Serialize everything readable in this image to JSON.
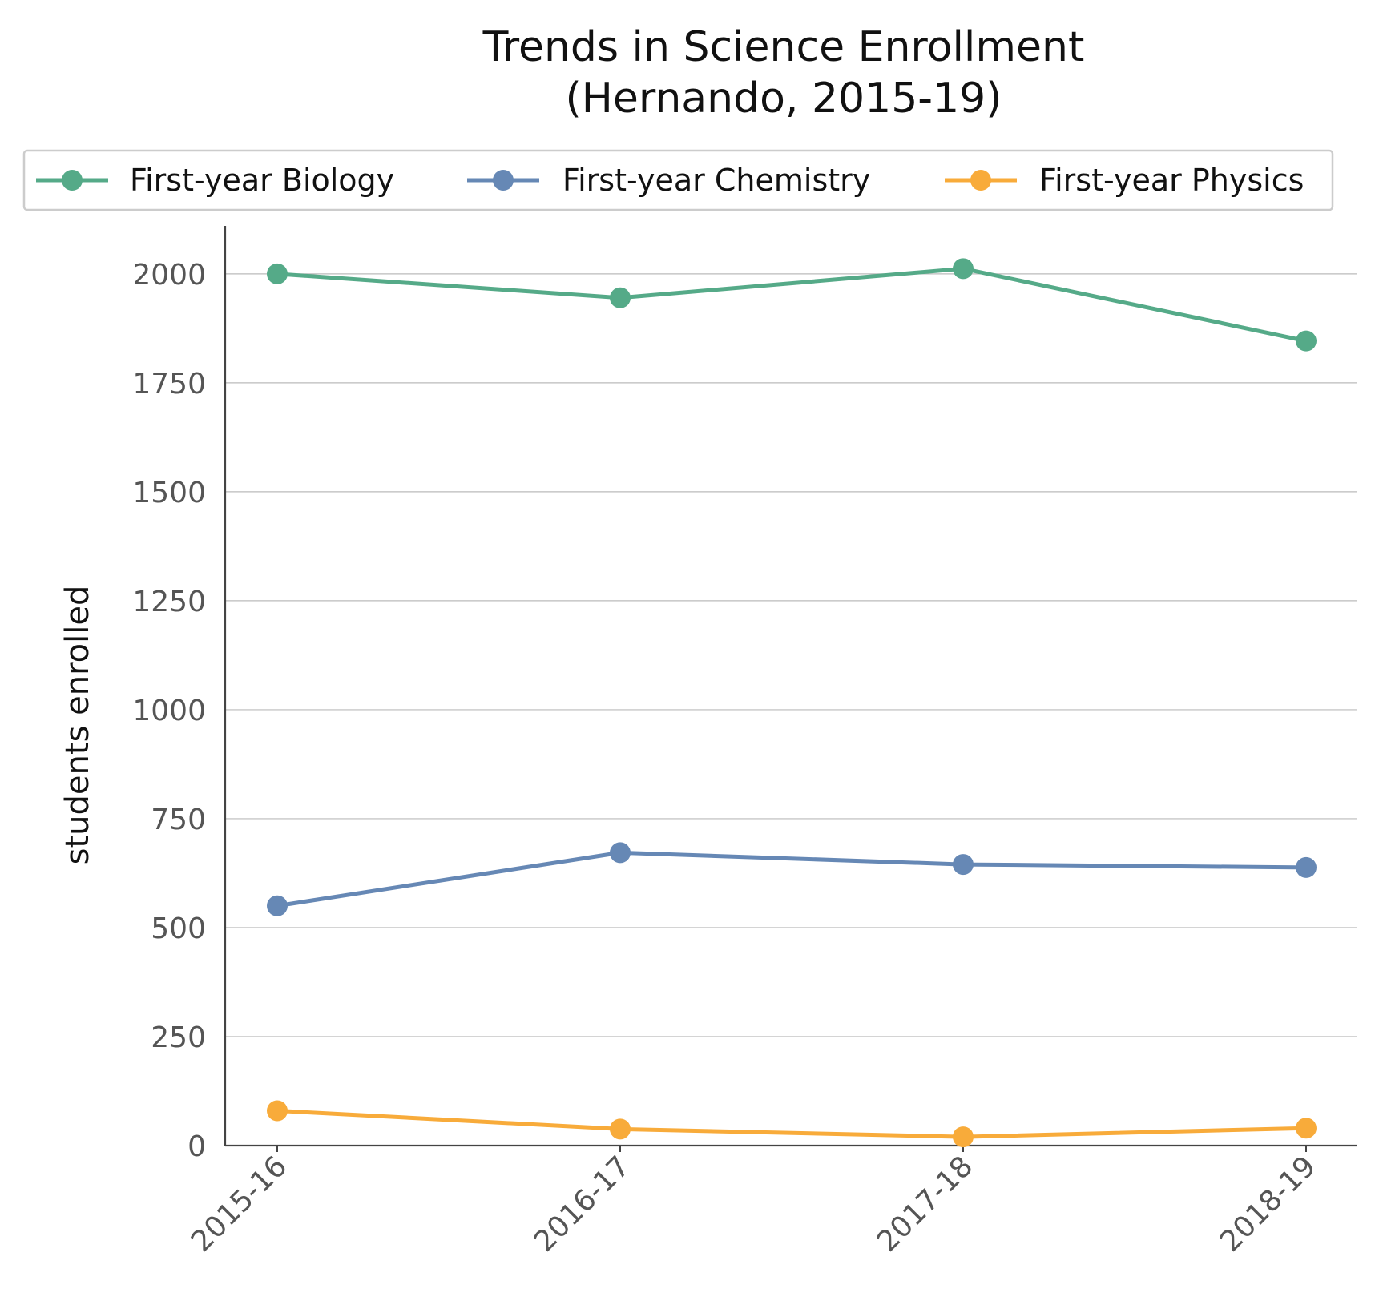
{
  "chart_data": {
    "type": "line",
    "title": "Trends in Science Enrollment",
    "subtitle": "(Hernando, 2015-19)",
    "xlabel": "",
    "ylabel": "students enrolled",
    "categories": [
      "2015-16",
      "2016-17",
      "2017-18",
      "2018-19"
    ],
    "ylim": [
      0,
      2110
    ],
    "yticks": [
      0,
      250,
      500,
      750,
      1000,
      1250,
      1500,
      1750,
      2000
    ],
    "grid": "horizontal",
    "legend_position": "top",
    "series": [
      {
        "name": "First-year Biology",
        "color": "#55aa88",
        "values": [
          2000,
          1945,
          2012,
          1846
        ]
      },
      {
        "name": "First-year Chemistry",
        "color": "#6688b5",
        "values": [
          550,
          672,
          645,
          638
        ]
      },
      {
        "name": "First-year Physics",
        "color": "#f8ab3a",
        "values": [
          80,
          38,
          20,
          40
        ]
      }
    ]
  }
}
